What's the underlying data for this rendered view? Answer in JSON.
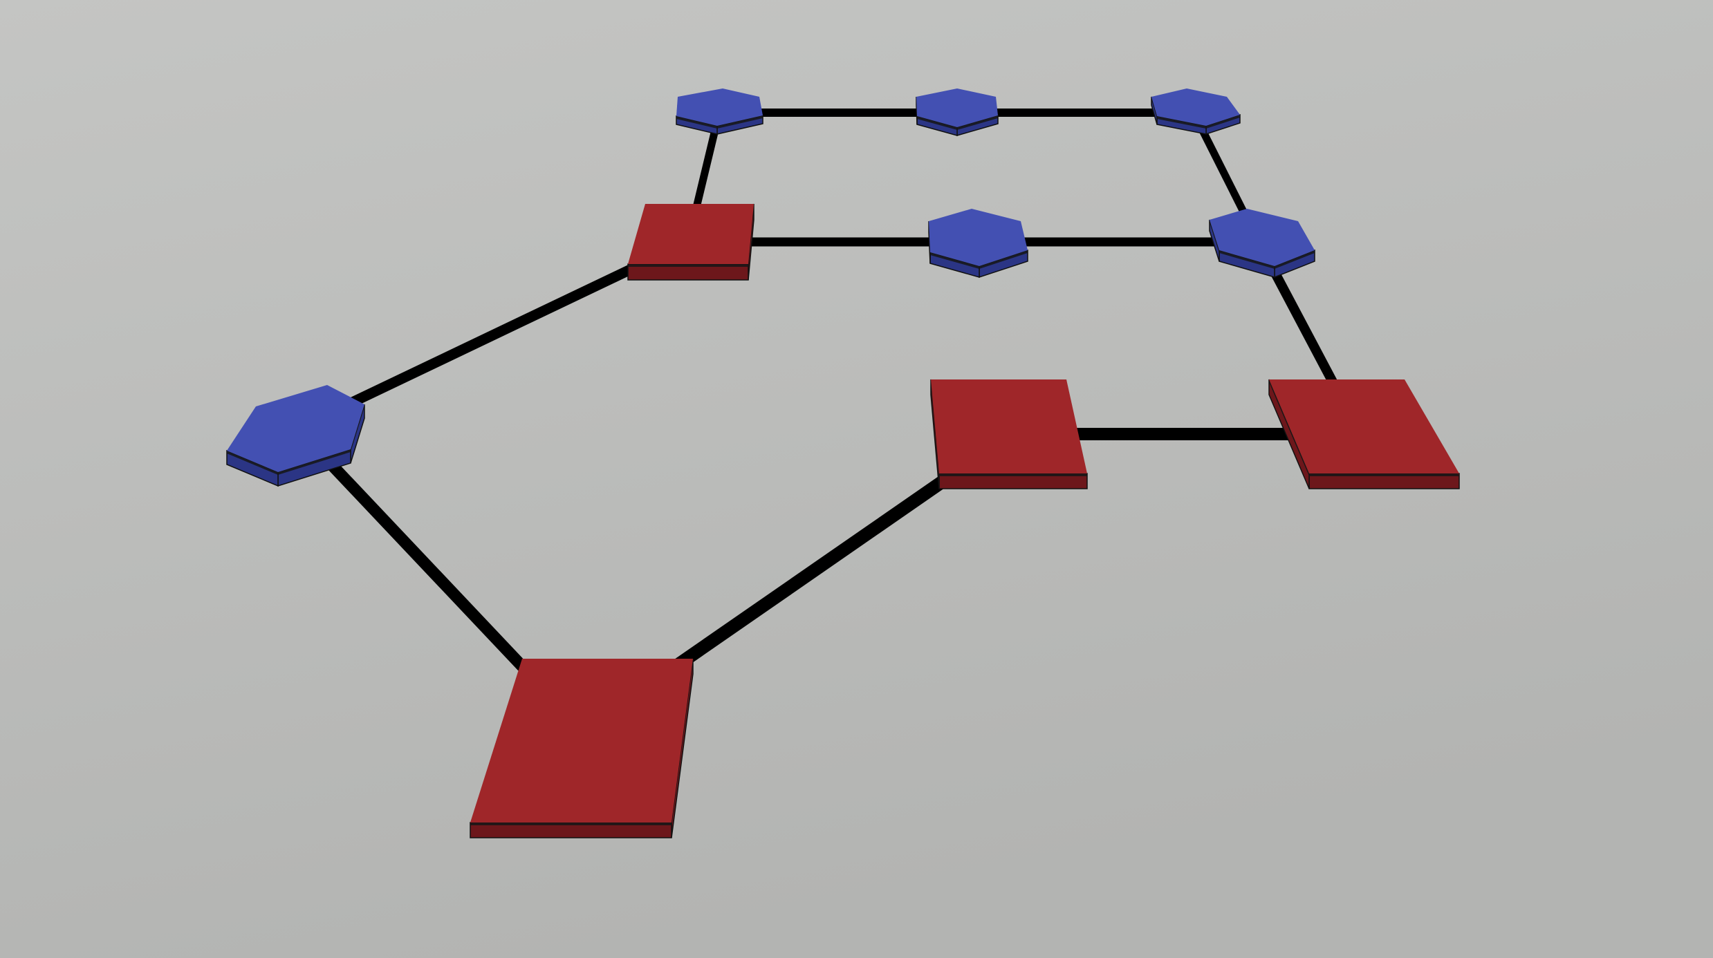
{
  "colors": {
    "background_top": "#c4c5c3",
    "background_bottom": "#b3b4b2",
    "edge": "#000000",
    "square_top": "#9f2629",
    "square_side": "#6d171b",
    "hexagon_top": "#4350b2",
    "hexagon_side": "#2b3585"
  },
  "nodes": [
    {
      "id": "hex-top-left",
      "shape": "hexagon"
    },
    {
      "id": "hex-top-middle",
      "shape": "hexagon"
    },
    {
      "id": "hex-top-right",
      "shape": "hexagon"
    },
    {
      "id": "square-upper-left",
      "shape": "square"
    },
    {
      "id": "hex-middle",
      "shape": "hexagon"
    },
    {
      "id": "hex-right",
      "shape": "hexagon"
    },
    {
      "id": "hex-left",
      "shape": "hexagon"
    },
    {
      "id": "square-center",
      "shape": "square"
    },
    {
      "id": "square-right",
      "shape": "square"
    },
    {
      "id": "square-bottom",
      "shape": "square"
    }
  ],
  "edges": [
    {
      "from": "hex-top-left",
      "to": "hex-top-middle"
    },
    {
      "from": "hex-top-middle",
      "to": "hex-top-right"
    },
    {
      "from": "hex-top-left",
      "to": "square-upper-left"
    },
    {
      "from": "hex-top-right",
      "to": "hex-right"
    },
    {
      "from": "square-upper-left",
      "to": "hex-middle"
    },
    {
      "from": "hex-middle",
      "to": "hex-right"
    },
    {
      "from": "hex-right",
      "to": "square-right"
    },
    {
      "from": "square-center",
      "to": "square-right"
    },
    {
      "from": "square-upper-left",
      "to": "hex-left"
    },
    {
      "from": "hex-left",
      "to": "square-bottom"
    },
    {
      "from": "square-bottom",
      "to": "square-center"
    }
  ]
}
